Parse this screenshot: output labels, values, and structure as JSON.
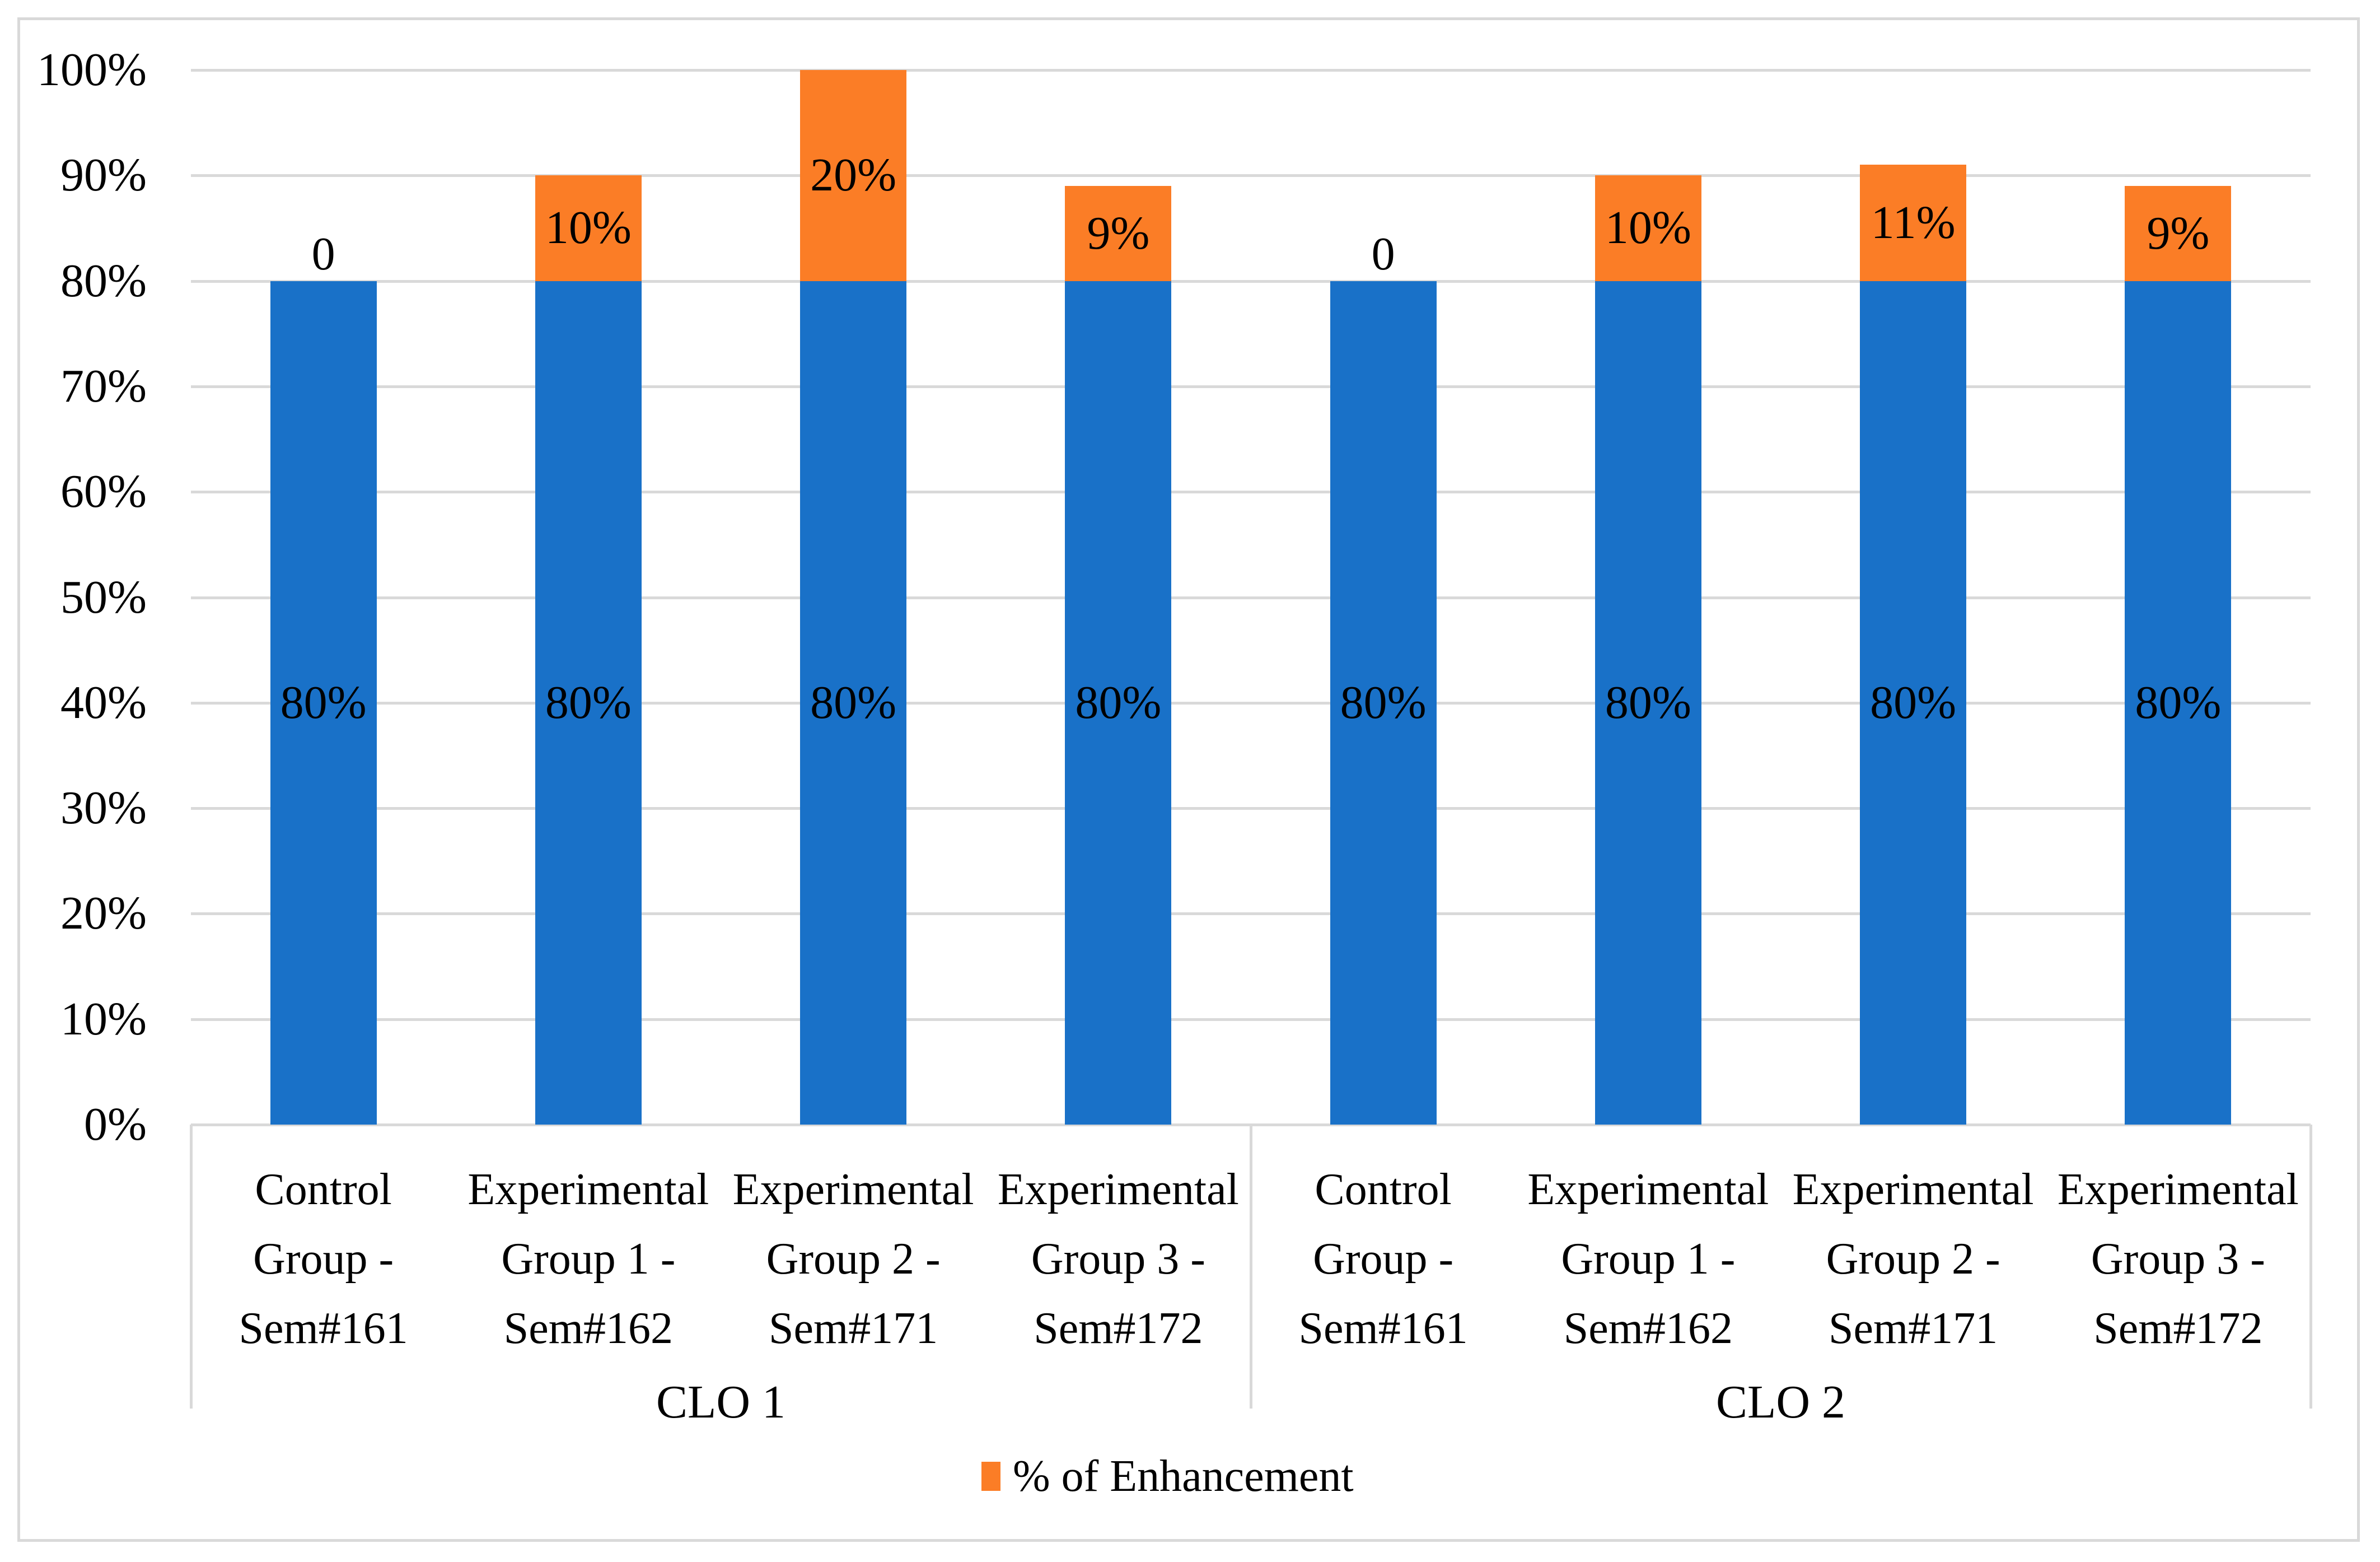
{
  "chart_data": {
    "type": "bar",
    "variant": "stacked-column",
    "title": "",
    "y_axis": {
      "min": 0,
      "max": 100,
      "tick_step": 10,
      "tick_labels": [
        "0%",
        "10%",
        "20%",
        "30%",
        "40%",
        "50%",
        "60%",
        "70%",
        "80%",
        "90%",
        "100%"
      ]
    },
    "grid": {
      "horizontal": true,
      "color": "#D9D9D9"
    },
    "groups": [
      {
        "label": "CLO 1",
        "categories": [
          {
            "lines": [
              "Control",
              "Group -",
              "Sem#161"
            ]
          },
          {
            "lines": [
              "Experimental",
              "Group 1 -",
              "Sem#162"
            ]
          },
          {
            "lines": [
              "Experimental",
              "Group 2 -",
              "Sem#171"
            ]
          },
          {
            "lines": [
              "Experimental",
              "Group 3 -",
              "Sem#172"
            ]
          }
        ]
      },
      {
        "label": "CLO 2",
        "categories": [
          {
            "lines": [
              "Control",
              "Group -",
              "Sem#161"
            ]
          },
          {
            "lines": [
              "Experimental",
              "Group 1 -",
              "Sem#162"
            ]
          },
          {
            "lines": [
              "Experimental",
              "Group 2 -",
              "Sem#171"
            ]
          },
          {
            "lines": [
              "Experimental",
              "Group 3 -",
              "Sem#172"
            ]
          }
        ]
      }
    ],
    "series": [
      {
        "name": "",
        "color": "#1971C8",
        "values": [
          80,
          80,
          80,
          80,
          80,
          80,
          80,
          80
        ],
        "labels": [
          "80%",
          "80%",
          "80%",
          "80%",
          "80%",
          "80%",
          "80%",
          "80%"
        ]
      },
      {
        "name": "% of Enhancement",
        "color": "#FB7D26",
        "values": [
          0,
          10,
          20,
          9,
          0,
          10,
          11,
          9
        ],
        "labels": [
          "0",
          "10%",
          "20%",
          "9%",
          "0",
          "10%",
          "11%",
          "9%"
        ]
      }
    ],
    "legend": {
      "label": "% of Enhancement",
      "color": "#FB7D26",
      "position": "bottom-center"
    },
    "frame_color": "#D9D9D9",
    "text_color": "#000000"
  }
}
